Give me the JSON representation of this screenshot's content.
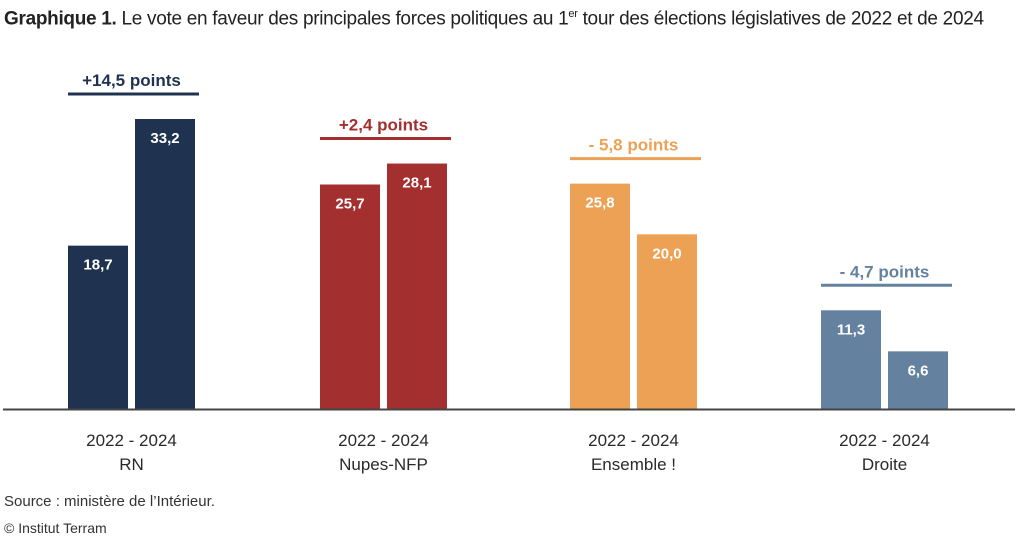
{
  "title": {
    "bold": "Graphique 1.",
    "text": "Le vote en faveur des principales forces politiques au 1",
    "sup": "er",
    "text2": " tour des élections législatives de 2022 et de 2024"
  },
  "chart_data": {
    "type": "bar",
    "title": "Graphique 1. Le vote en faveur des principales forces politiques au 1er tour des élections législatives de 2022 et de 2024",
    "ylim": [
      0,
      35
    ],
    "grid": false,
    "categories": [
      "RN",
      "Nupes-NFP",
      "Ensemble !",
      "Droite"
    ],
    "years": [
      "2022",
      "2024"
    ],
    "year_label": "2022 - 2024",
    "groups": [
      {
        "name": "RN",
        "values": [
          18.7,
          33.2
        ],
        "labels": [
          "18,7",
          "33,2"
        ],
        "change": "+14,5 points",
        "color": "#1f3350"
      },
      {
        "name": "Nupes-NFP",
        "values": [
          25.7,
          28.1
        ],
        "labels": [
          "25,7",
          "28,1"
        ],
        "change": "+2,4 points",
        "color": "#a32f2f"
      },
      {
        "name": "Ensemble !",
        "values": [
          25.8,
          20.0
        ],
        "labels": [
          "25,8",
          "20,0"
        ],
        "change": "- 5,8 points",
        "color": "#eda154"
      },
      {
        "name": "Droite",
        "values": [
          11.3,
          6.6
        ],
        "labels": [
          "11,3",
          "6,6"
        ],
        "change": "- 4,7 points",
        "color": "#64829f"
      }
    ]
  },
  "source": "Source : ministère de l’Intérieur.",
  "copyright": "© Institut Terram"
}
